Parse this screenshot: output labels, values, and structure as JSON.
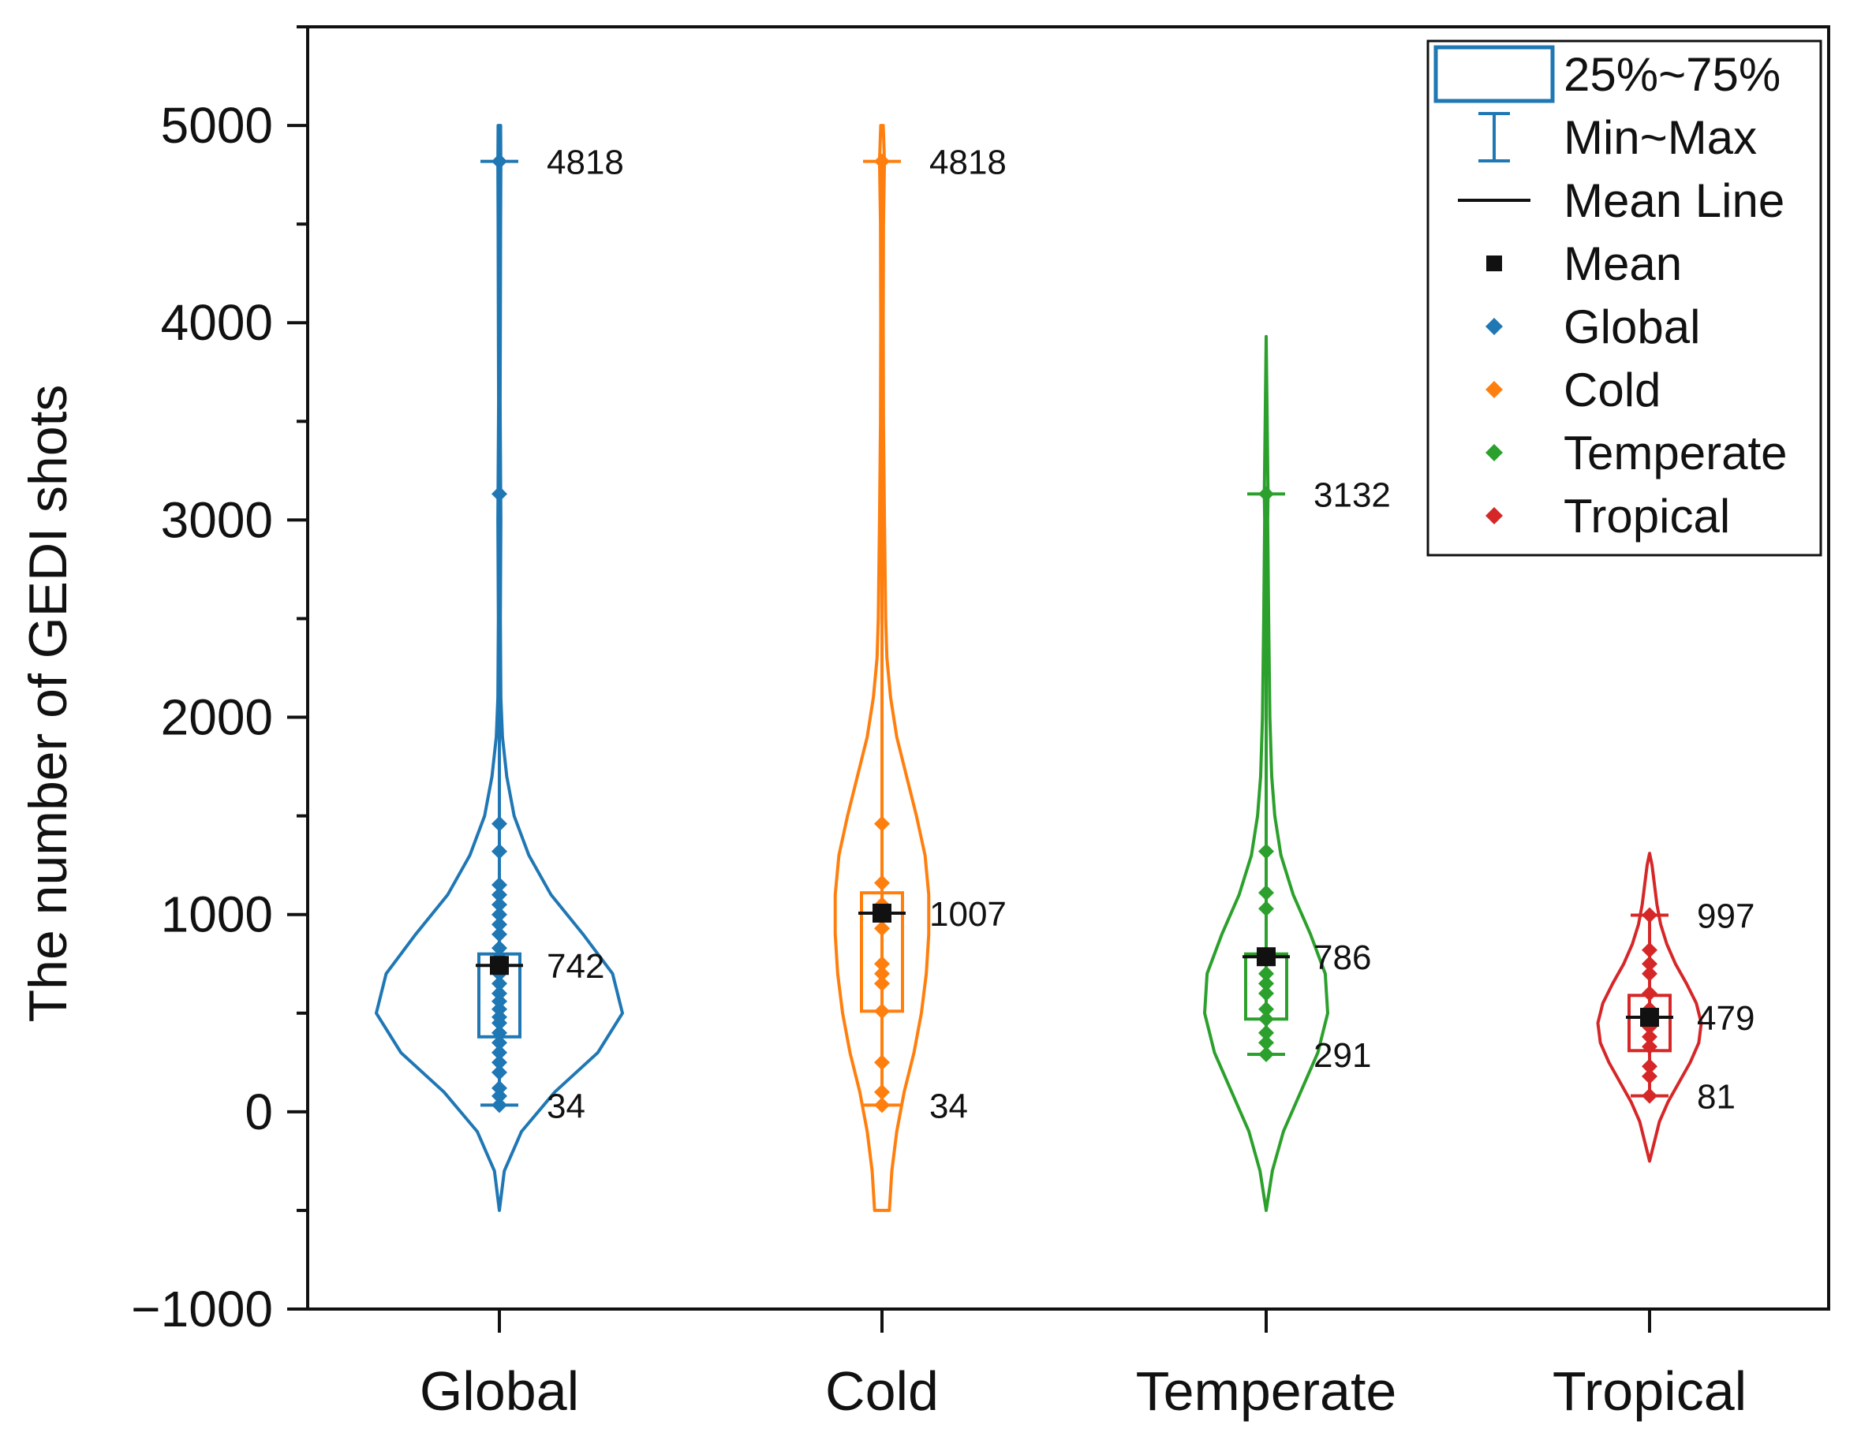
{
  "chart_data": {
    "type": "violin",
    "ylabel": "The number of GEDI shots",
    "xlabel": "",
    "ylim": [
      -1000,
      5500
    ],
    "yticks": [
      -1000,
      0,
      1000,
      2000,
      3000,
      4000,
      5000
    ],
    "ytick_labels": [
      "−1000",
      "0",
      "1000",
      "2000",
      "3000",
      "4000",
      "5000"
    ],
    "categories": [
      "Global",
      "Cold",
      "Temperate",
      "Tropical"
    ],
    "series": [
      {
        "name": "Global",
        "color": "#1f77b4",
        "q1": 380,
        "q3": 800,
        "mean": 742,
        "min": 34,
        "max": 4818,
        "violin_low": -500,
        "violin_high": 5000,
        "labels": {
          "max": "4818",
          "mean": "742",
          "min": "34"
        },
        "density": [
          [
            -500,
            0.0
          ],
          [
            -300,
            0.04
          ],
          [
            -100,
            0.18
          ],
          [
            100,
            0.45
          ],
          [
            300,
            0.8
          ],
          [
            500,
            1.0
          ],
          [
            700,
            0.92
          ],
          [
            900,
            0.68
          ],
          [
            1100,
            0.42
          ],
          [
            1300,
            0.24
          ],
          [
            1500,
            0.12
          ],
          [
            1700,
            0.06
          ],
          [
            1900,
            0.025
          ],
          [
            2100,
            0.012
          ],
          [
            2500,
            0.008
          ],
          [
            3000,
            0.012
          ],
          [
            3200,
            0.01
          ],
          [
            3600,
            0.006
          ],
          [
            4000,
            0.008
          ],
          [
            4500,
            0.01
          ],
          [
            4800,
            0.012
          ],
          [
            5000,
            0.01
          ]
        ],
        "points": [
          34,
          80,
          120,
          200,
          250,
          300,
          350,
          400,
          450,
          480,
          520,
          560,
          600,
          650,
          700,
          742,
          780,
          830,
          900,
          950,
          1000,
          1050,
          1100,
          1150,
          1320,
          1460,
          3132,
          4818
        ]
      },
      {
        "name": "Cold",
        "color": "#ff7f0e",
        "q1": 510,
        "q3": 1110,
        "mean": 1007,
        "min": 34,
        "max": 4818,
        "violin_low": -500,
        "violin_high": 5000,
        "labels": {
          "max": "4818",
          "mean": "1007",
          "min": "34"
        },
        "density": [
          [
            -500,
            0.06
          ],
          [
            -300,
            0.08
          ],
          [
            -100,
            0.12
          ],
          [
            100,
            0.18
          ],
          [
            300,
            0.26
          ],
          [
            500,
            0.32
          ],
          [
            700,
            0.36
          ],
          [
            900,
            0.38
          ],
          [
            1100,
            0.38
          ],
          [
            1300,
            0.35
          ],
          [
            1500,
            0.28
          ],
          [
            1700,
            0.2
          ],
          [
            1900,
            0.12
          ],
          [
            2100,
            0.07
          ],
          [
            2300,
            0.04
          ],
          [
            2500,
            0.03
          ],
          [
            3000,
            0.02
          ],
          [
            3500,
            0.012
          ],
          [
            4000,
            0.01
          ],
          [
            4500,
            0.012
          ],
          [
            4818,
            0.02
          ],
          [
            5000,
            0.01
          ]
        ],
        "points": [
          34,
          100,
          250,
          510,
          650,
          700,
          750,
          930,
          1007,
          1050,
          1160,
          1460,
          4818
        ]
      },
      {
        "name": "Temperate",
        "color": "#2ca02c",
        "q1": 470,
        "q3": 800,
        "mean": 786,
        "min": 291,
        "max": 3132,
        "violin_low": -500,
        "violin_high": 3930,
        "labels": {
          "max": "3132",
          "mean": "786",
          "min": "291"
        },
        "density": [
          [
            -500,
            0.0
          ],
          [
            -300,
            0.05
          ],
          [
            -100,
            0.14
          ],
          [
            100,
            0.28
          ],
          [
            300,
            0.42
          ],
          [
            500,
            0.5
          ],
          [
            700,
            0.48
          ],
          [
            900,
            0.36
          ],
          [
            1100,
            0.22
          ],
          [
            1300,
            0.12
          ],
          [
            1500,
            0.07
          ],
          [
            1700,
            0.045
          ],
          [
            2000,
            0.03
          ],
          [
            2500,
            0.02
          ],
          [
            3000,
            0.012
          ],
          [
            3132,
            0.015
          ],
          [
            3500,
            0.008
          ],
          [
            3930,
            0.0
          ]
        ],
        "points": [
          291,
          350,
          400,
          470,
          520,
          600,
          650,
          700,
          786,
          1030,
          1110,
          1320,
          3132
        ]
      },
      {
        "name": "Tropical",
        "color": "#d62728",
        "q1": 310,
        "q3": 590,
        "mean": 479,
        "min": 81,
        "max": 997,
        "violin_low": -250,
        "violin_high": 1310,
        "labels": {
          "max": "997",
          "mean": "479",
          "min": "81"
        },
        "density": [
          [
            -250,
            0.0
          ],
          [
            -150,
            0.04
          ],
          [
            -50,
            0.08
          ],
          [
            50,
            0.15
          ],
          [
            150,
            0.24
          ],
          [
            250,
            0.33
          ],
          [
            350,
            0.4
          ],
          [
            450,
            0.42
          ],
          [
            550,
            0.38
          ],
          [
            650,
            0.3
          ],
          [
            750,
            0.21
          ],
          [
            850,
            0.14
          ],
          [
            950,
            0.09
          ],
          [
            1050,
            0.06
          ],
          [
            1150,
            0.04
          ],
          [
            1250,
            0.02
          ],
          [
            1310,
            0.0
          ]
        ],
        "points": [
          81,
          180,
          230,
          330,
          380,
          430,
          479,
          520,
          600,
          700,
          750,
          820,
          997
        ]
      }
    ],
    "legend": {
      "position": "top-right",
      "items": [
        {
          "kind": "box",
          "label": "25%~75%"
        },
        {
          "kind": "whisker",
          "label": "Min~Max"
        },
        {
          "kind": "line",
          "label": "Mean Line"
        },
        {
          "kind": "square",
          "label": "Mean"
        },
        {
          "kind": "diamond",
          "label": "Global",
          "color": "#1f77b4"
        },
        {
          "kind": "diamond",
          "label": "Cold",
          "color": "#ff7f0e"
        },
        {
          "kind": "diamond",
          "label": "Temperate",
          "color": "#2ca02c"
        },
        {
          "kind": "diamond",
          "label": "Tropical",
          "color": "#d62728"
        }
      ]
    }
  }
}
